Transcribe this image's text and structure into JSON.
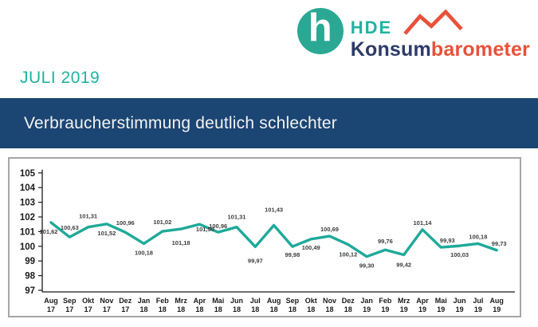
{
  "logo": {
    "mark_letter": "h",
    "hde": "HDE",
    "konsum": "Konsum",
    "barometer": "barometer"
  },
  "period_label": "JULI 2019",
  "banner": {
    "headline": "Verbraucherstimmung deutlich schlechter"
  },
  "colors": {
    "teal": "#1fa99a",
    "teal_text": "#20b2a1",
    "logo_circle": "#2aa893",
    "navy_banner": "#1b4572",
    "navy_text": "#2e3b68",
    "orange": "#e8513a",
    "axis": "#1a1a1a",
    "label": "#3d3d3d"
  },
  "chart_data": {
    "type": "line",
    "title": "",
    "xlabel": "",
    "ylabel": "",
    "ylim": [
      97,
      105
    ],
    "yticks": [
      97,
      98,
      99,
      100,
      101,
      102,
      103,
      104,
      105
    ],
    "grid": false,
    "legend": false,
    "line_color": "#1fa99a",
    "categories": [
      {
        "m": "Aug",
        "y": "17"
      },
      {
        "m": "Sep",
        "y": "17"
      },
      {
        "m": "Okt",
        "y": "17"
      },
      {
        "m": "Nov",
        "y": "17"
      },
      {
        "m": "Dez",
        "y": "17"
      },
      {
        "m": "Jan",
        "y": "18"
      },
      {
        "m": "Feb",
        "y": "18"
      },
      {
        "m": "Mrz",
        "y": "18"
      },
      {
        "m": "Apr",
        "y": "18"
      },
      {
        "m": "Mai",
        "y": "18"
      },
      {
        "m": "Jun",
        "y": "18"
      },
      {
        "m": "Jul",
        "y": "18"
      },
      {
        "m": "Aug",
        "y": "18"
      },
      {
        "m": "Sep",
        "y": "18"
      },
      {
        "m": "Okt",
        "y": "18"
      },
      {
        "m": "Nov",
        "y": "18"
      },
      {
        "m": "Dez",
        "y": "18"
      },
      {
        "m": "Jan",
        "y": "19"
      },
      {
        "m": "Feb",
        "y": "19"
      },
      {
        "m": "Mrz",
        "y": "19"
      },
      {
        "m": "Apr",
        "y": "19"
      },
      {
        "m": "Mai",
        "y": "19"
      },
      {
        "m": "Jun",
        "y": "19"
      },
      {
        "m": "Jul",
        "y": "19"
      },
      {
        "m": "Aug",
        "y": "19"
      }
    ],
    "values": [
      101.62,
      100.63,
      101.31,
      101.52,
      100.96,
      100.18,
      101.02,
      101.18,
      101.5,
      100.96,
      101.31,
      99.97,
      101.43,
      99.98,
      100.49,
      100.69,
      100.12,
      99.3,
      99.76,
      99.42,
      101.14,
      99.93,
      100.03,
      100.18,
      99.73
    ],
    "value_labels": [
      "101,62",
      "100,63",
      "101,31",
      "101,52",
      "100,96",
      "100,18",
      "101,02",
      "101,18",
      "101,50",
      "100,96",
      "101,31",
      "99,97",
      "101,43",
      "99,98",
      "100,49",
      "100,69",
      "100,12",
      "99,30",
      "99,76",
      "99,42",
      "101,14",
      "99,93",
      "100,03",
      "100,18",
      "99,73"
    ],
    "label_positions": [
      "below",
      "above",
      "above",
      "below",
      "above",
      "below",
      "above",
      "below",
      "below",
      "above",
      "above",
      "below",
      "above",
      "below",
      "below",
      "above",
      "below",
      "below",
      "above",
      "below",
      "above",
      "above",
      "below",
      "above",
      "above"
    ],
    "label_dy": [
      14,
      -9,
      -11,
      14,
      -9,
      14,
      -9,
      20,
      9,
      -5,
      -10,
      20,
      -17,
      13,
      13,
      -6,
      15,
      14,
      -8,
      15,
      -6,
      -6,
      14,
      -6,
      -6
    ],
    "label_dx": [
      -3,
      0,
      0,
      0,
      0,
      0,
      0,
      0,
      7,
      0,
      0,
      0,
      0,
      0,
      0,
      0,
      0,
      0,
      0,
      0,
      0,
      8,
      0,
      0,
      3
    ]
  }
}
